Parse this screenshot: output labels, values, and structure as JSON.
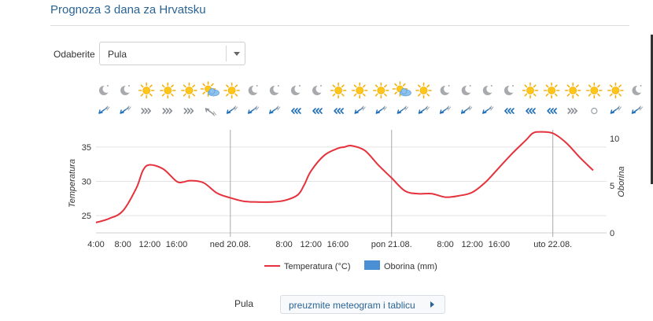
{
  "header": {
    "title": "Prognoza 3 dana za Hrvatsku"
  },
  "location_select": {
    "label": "Odaberite",
    "selected": "Pula"
  },
  "weather_icons": [
    "moon",
    "moon",
    "sun",
    "sun",
    "sun",
    "sun-cloud",
    "sun",
    "moon",
    "moon",
    "moon",
    "moon",
    "sun",
    "sun",
    "sun",
    "sun-cloud",
    "sun",
    "moon",
    "moon",
    "moon",
    "moon",
    "sun",
    "sun",
    "sun",
    "sun",
    "sun",
    "moon",
    "moon"
  ],
  "wind_icons": [
    "sw",
    "sw",
    "e",
    "e",
    "e",
    "se",
    "sw",
    "sw",
    "sw",
    "w",
    "w",
    "w",
    "sw",
    "sw",
    "sw",
    "sw",
    "sw",
    "sw",
    "sw",
    "w",
    "w",
    "w",
    "e",
    "calm",
    "sw",
    "sw"
  ],
  "chart_data": {
    "type": "line",
    "x_tick_labels": [
      "4:00",
      "8:00",
      "12:00",
      "16:00",
      "ned 20.08.",
      "8:00",
      "12:00",
      "16:00",
      "pon 21.08.",
      "8:00",
      "12:00",
      "16:00",
      "uto 22.08."
    ],
    "y_left_label": "Temperatura",
    "y_left_ticks": [
      25,
      30,
      35
    ],
    "y_left_range": [
      22.5,
      37.5
    ],
    "y_right_label": "Oborina",
    "y_right_ticks": [
      0,
      5,
      10
    ],
    "y_right_range": [
      0,
      10
    ],
    "grid": true,
    "legend_position": "bottom-center",
    "colors": {
      "temperature": "#e5323c",
      "precipitation": "#4a8fd4"
    },
    "series": [
      {
        "name": "Temperatura (°C)",
        "hours": [
          0,
          2,
          4,
          6,
          7,
          8,
          10,
          12,
          13,
          14,
          16,
          18,
          20,
          22,
          24,
          26,
          28,
          30,
          31,
          32,
          34,
          36,
          37,
          38,
          40,
          42,
          44,
          46,
          48,
          50,
          52,
          54,
          56,
          58,
          60,
          62,
          64,
          65,
          66,
          68,
          70,
          72,
          74
        ],
        "values": [
          24,
          24.6,
          25.7,
          29,
          31.6,
          32.4,
          31.8,
          30,
          29.9,
          30.1,
          29.8,
          28.3,
          27.6,
          27.1,
          27,
          27,
          27.2,
          28,
          29.5,
          31.5,
          33.8,
          34.8,
          35,
          35.2,
          34.5,
          32.4,
          30.5,
          28.6,
          28.2,
          28.2,
          27.7,
          27.9,
          28.4,
          29.9,
          32,
          34.1,
          36,
          37,
          37.2,
          37,
          35.6,
          33.5,
          31.6
        ]
      },
      {
        "name": "Oborina (mm)",
        "values": []
      }
    ]
  },
  "footer": {
    "location": "Pula",
    "button_label": "preuzmite meteogram i tablicu"
  }
}
